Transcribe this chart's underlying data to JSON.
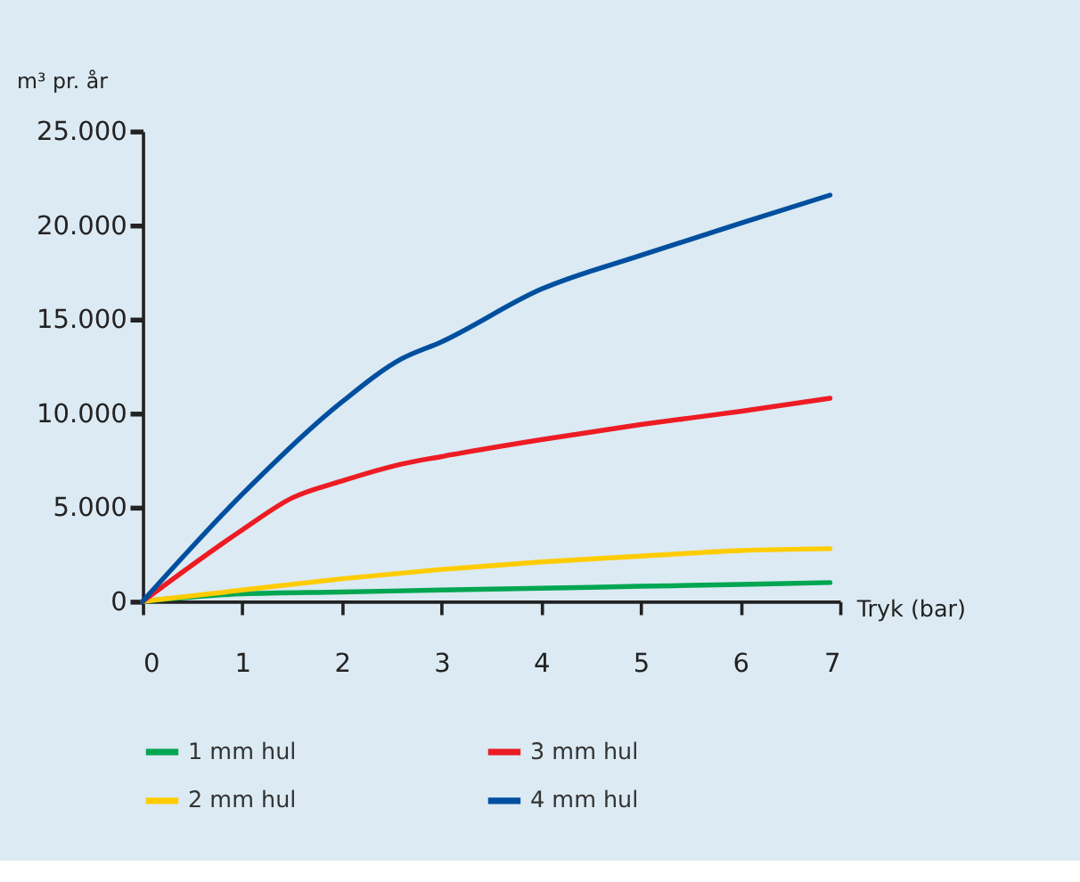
{
  "chart_data": {
    "type": "line",
    "xlabel": "Tryk (bar)",
    "ylabel": "m³ pr. år",
    "xlim": [
      0,
      7
    ],
    "xticks": [
      0,
      1,
      2,
      3,
      4,
      5,
      6,
      7
    ],
    "ylim": [
      0,
      25000
    ],
    "yticks": [
      0,
      {
        "value": 5000,
        "label": "5.000"
      },
      {
        "value": 10000,
        "label": "10.000"
      },
      {
        "value": 15000,
        "label": "15.000"
      },
      {
        "value": 20000,
        "label": "20.000"
      },
      {
        "value": 25000,
        "label": "25.000"
      }
    ],
    "grid": false,
    "legend": "bottom",
    "marker": "none",
    "line_style": "solid",
    "series": [
      {
        "name": "1 mm hul",
        "color": "#00a651",
        "x": [
          0,
          1,
          2,
          3,
          4,
          5,
          6,
          6.9
        ],
        "values": [
          0,
          400,
          500,
          600,
          700,
          800,
          900,
          1000
        ]
      },
      {
        "name": "2 mm hul",
        "color": "#ffcc00",
        "x": [
          0,
          1,
          2,
          3,
          4,
          5,
          6,
          6.9
        ],
        "values": [
          0,
          600,
          1200,
          1700,
          2100,
          2400,
          2700,
          2800
        ]
      },
      {
        "name": "3 mm hul",
        "color": "#ed1c24",
        "x": [
          0,
          1,
          1.5,
          2,
          2.6,
          3,
          4,
          5,
          6,
          6.9
        ],
        "values": [
          0,
          3800,
          5500,
          6400,
          7300,
          7700,
          8600,
          9400,
          10100,
          10800
        ]
      },
      {
        "name": "4 mm hul",
        "color": "#004f9f",
        "x": [
          0,
          1,
          2,
          2.6,
          3,
          4,
          5,
          6,
          6.9
        ],
        "values": [
          0,
          5700,
          10600,
          12900,
          13800,
          16600,
          18400,
          20100,
          21600
        ]
      }
    ]
  }
}
